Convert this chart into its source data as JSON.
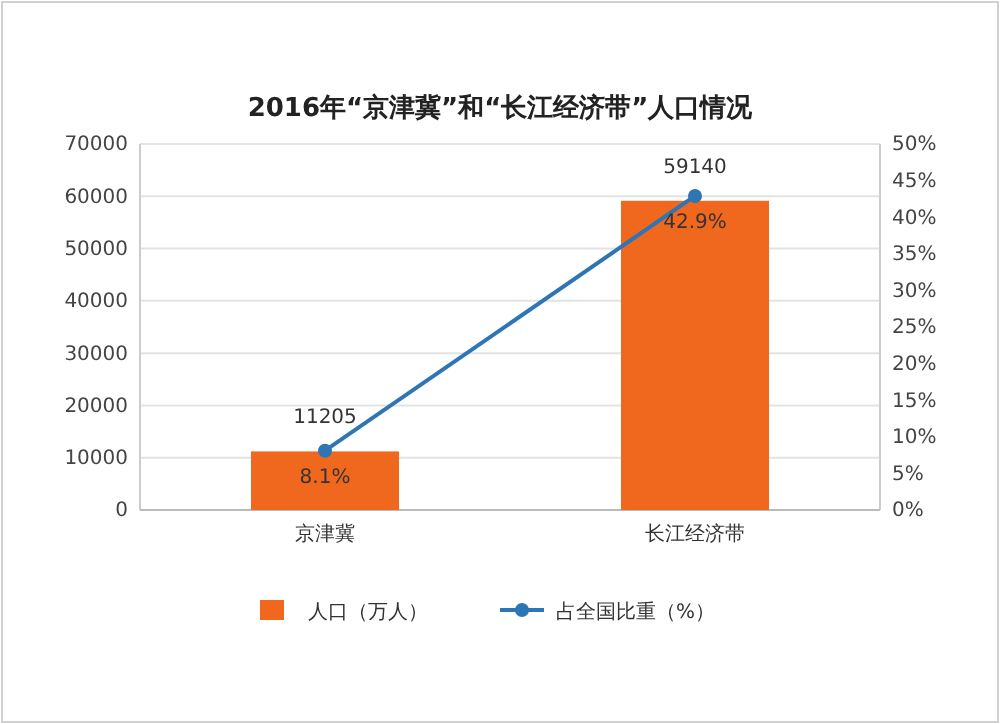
{
  "chart_data": {
    "type": "bar",
    "title": "2016年“京津冀”和“长江经济带”人口情况",
    "categories": [
      "京津冀",
      "长江经济带"
    ],
    "series": [
      {
        "name": "人口（万人）",
        "color": "#f0671e",
        "values": [
          11205,
          59140
        ],
        "value_labels": [
          "11205",
          "59140"
        ]
      },
      {
        "name": "占全国比重（%）",
        "type": "line",
        "axis": "y2",
        "color": "#2e75b6",
        "values": [
          8.1,
          42.9
        ],
        "value_labels": [
          "8.1%",
          "42.9%"
        ]
      }
    ],
    "ylim": [
      0,
      70000
    ],
    "yticks": [
      0,
      10000,
      20000,
      30000,
      40000,
      50000,
      60000,
      70000
    ],
    "y2lim": [
      0,
      50
    ],
    "y2ticks": [
      {
        "value": 0,
        "label": "0%"
      },
      {
        "value": 5,
        "label": "5%"
      },
      {
        "value": 10,
        "label": "10%"
      },
      {
        "value": 15,
        "label": "15%"
      },
      {
        "value": 20,
        "label": "20%"
      },
      {
        "value": 25,
        "label": "25%"
      },
      {
        "value": 30,
        "label": "30%"
      },
      {
        "value": 35,
        "label": "35%"
      },
      {
        "value": 40,
        "label": "40%"
      },
      {
        "value": 45,
        "label": "45%"
      },
      {
        "value": 50,
        "label": "50%"
      }
    ],
    "grid": "y",
    "legend": "bottom",
    "marker": "circle",
    "line_style": "solid"
  }
}
